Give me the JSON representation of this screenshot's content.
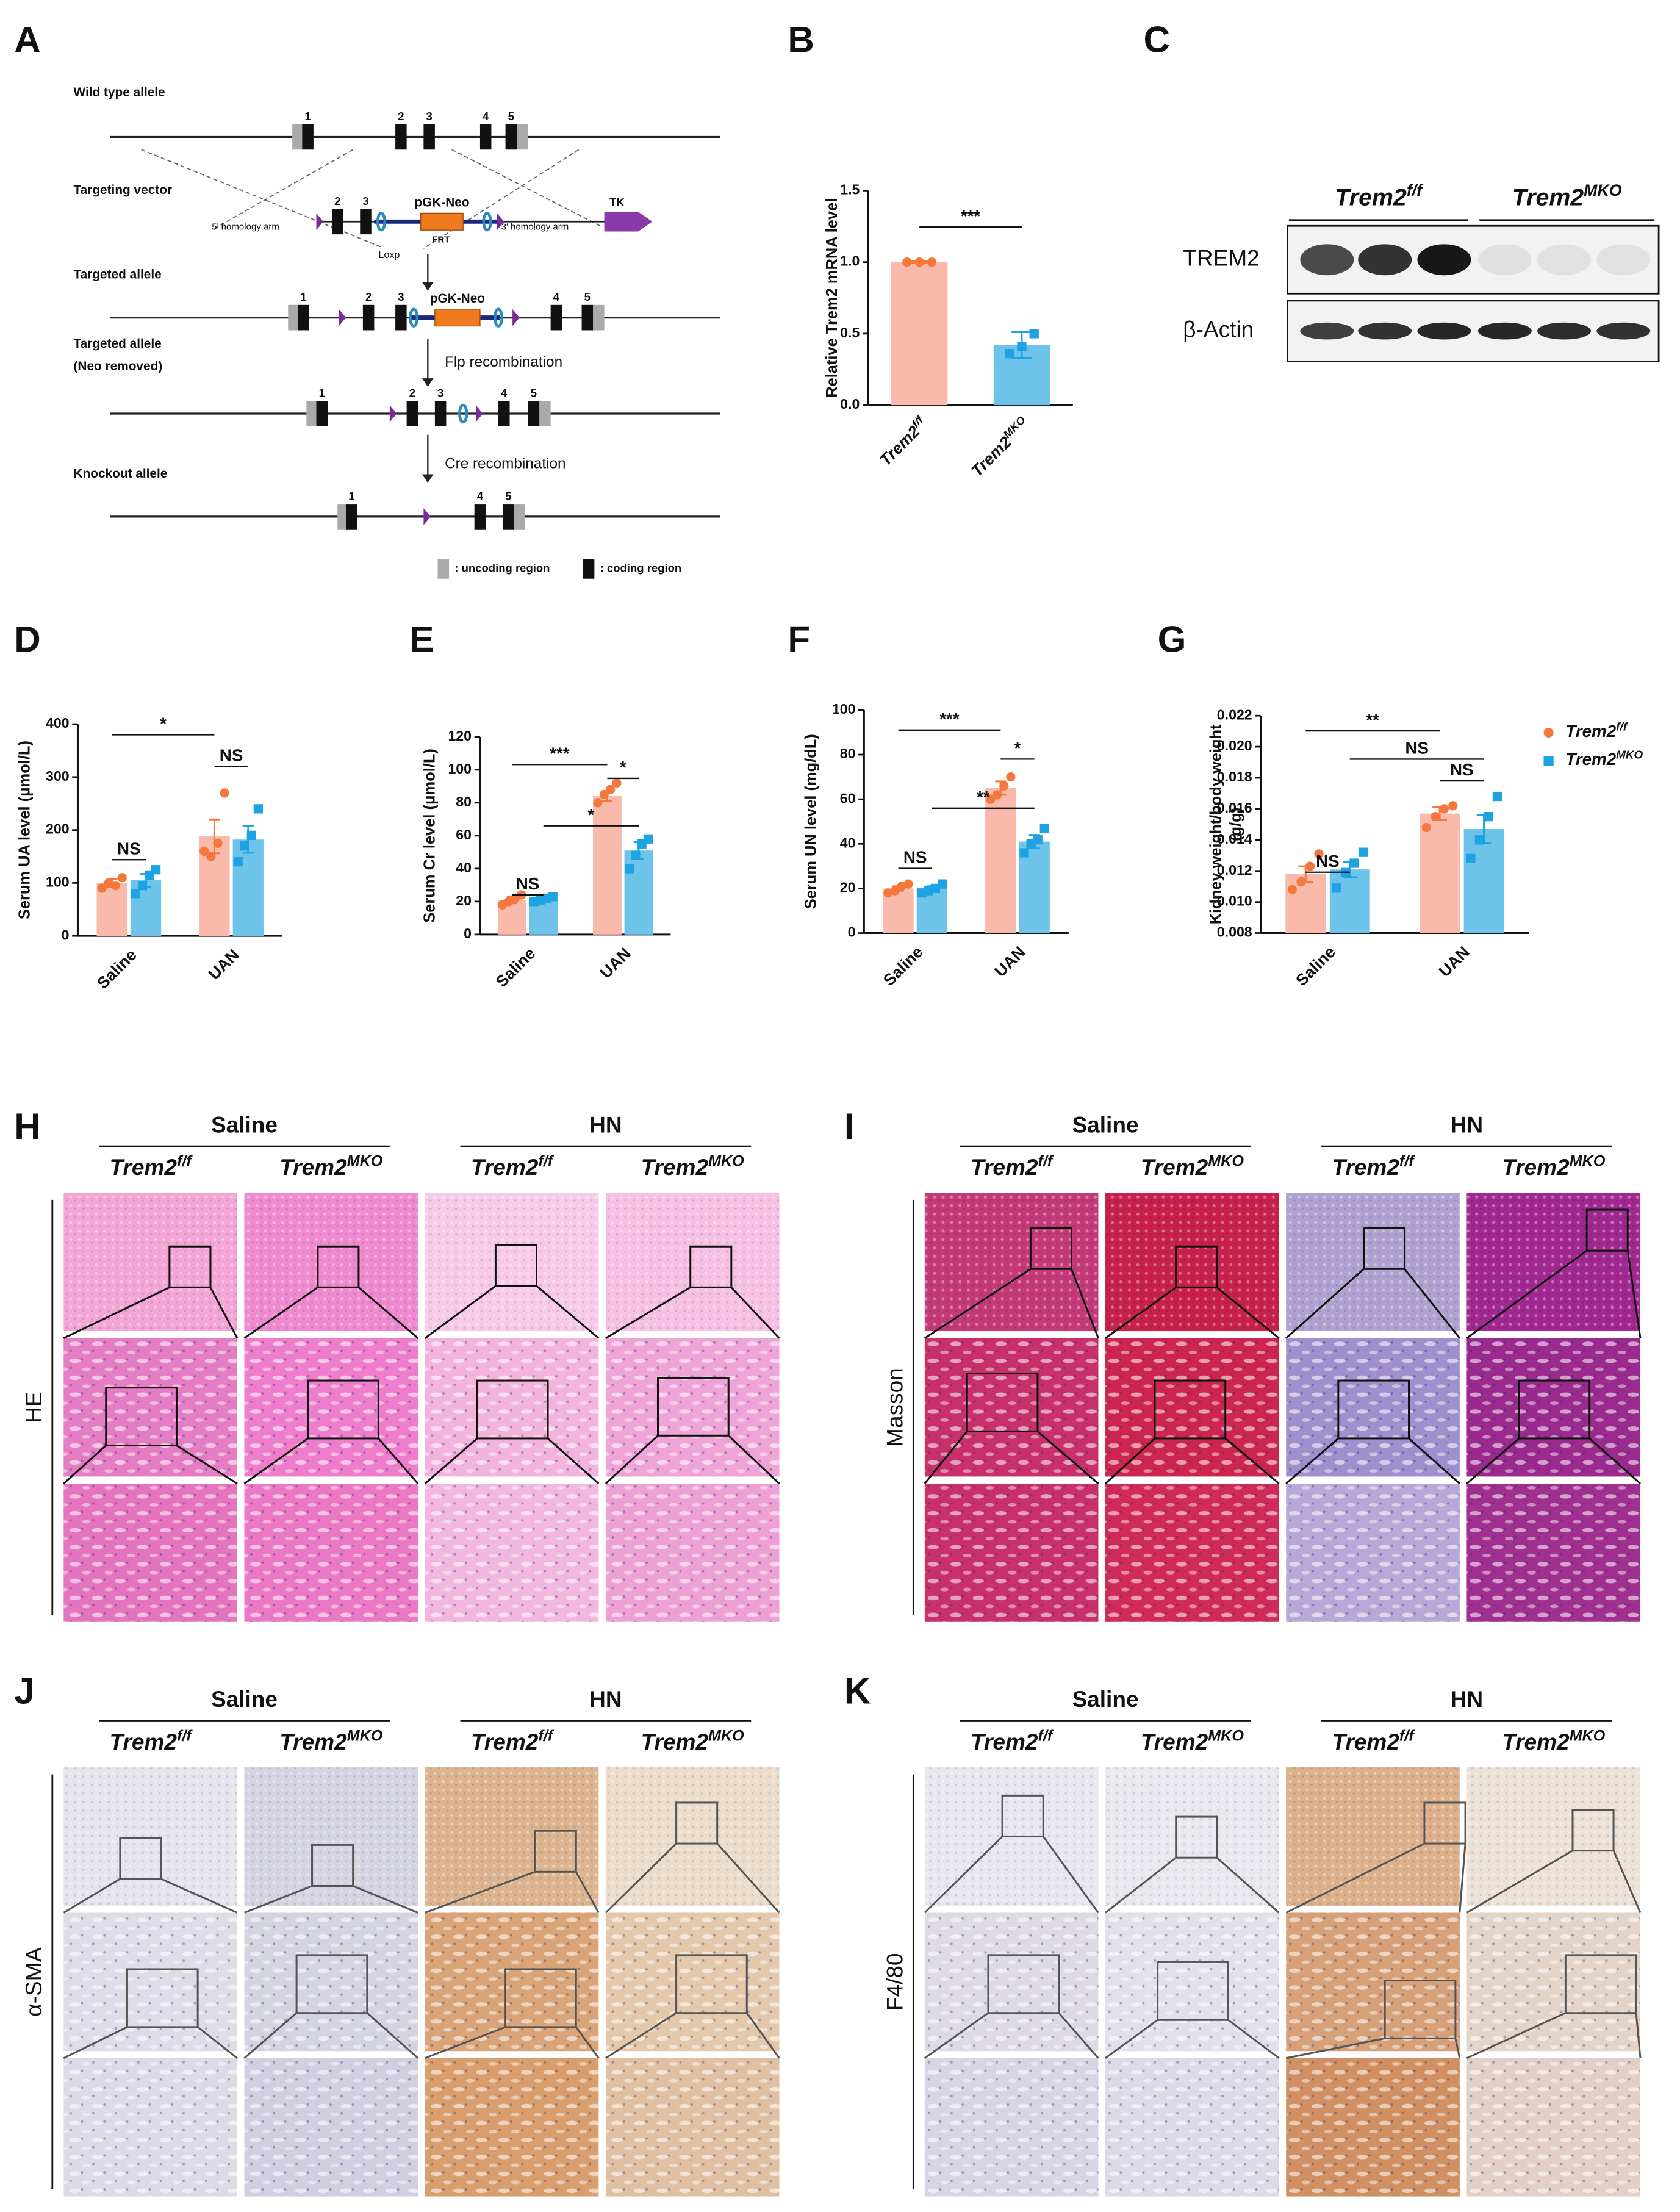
{
  "panel_letters": [
    "A",
    "B",
    "C",
    "D",
    "E",
    "F",
    "G",
    "H",
    "I",
    "J",
    "K"
  ],
  "diagram": {
    "rows": [
      "Wild type allele",
      "Targeting vector",
      "Targeted allele",
      [
        "Targeted allele",
        "(Neo removed)"
      ],
      "Knockout allele"
    ],
    "exons": {
      "wt": [
        "1",
        "2",
        "3",
        "4",
        "5"
      ],
      "vector": [
        "2",
        "3"
      ],
      "targeted": [
        "1",
        "2",
        "3",
        "4",
        "5"
      ],
      "neo_removed": [
        "1",
        "2",
        "3",
        "4",
        "5"
      ],
      "knockout": [
        "1",
        "4",
        "5"
      ]
    },
    "neo": "pGK-Neo",
    "frt": "FRT",
    "loxp": "Loxp",
    "arm5": "5' homology arm",
    "arm3": "3' homology arm",
    "tk": "TK",
    "flp": "Flp recombination",
    "cre": "Cre recombination",
    "legend": [
      ": uncoding region",
      ": coding region"
    ]
  },
  "blot": {
    "groups": [
      "Trem2f/f",
      "Trem2MKO"
    ],
    "rows": [
      "TREM2",
      "β-Actin"
    ]
  },
  "chart_data": [
    {
      "type": "bar",
      "ylabel": "Relative Trem2 mRNA level",
      "categories": [
        "Trem2f/f",
        "Trem2MKO"
      ],
      "values": [
        1.0,
        0.42
      ],
      "errors": [
        0.005,
        0.09
      ],
      "points": [
        [
          1.0,
          1.0,
          1.0
        ],
        [
          0.36,
          0.41,
          0.5
        ]
      ],
      "colors": [
        "#f9b9ab",
        "#6ec3ea"
      ],
      "point_colors": [
        "#f4783c",
        "#1da3e2"
      ],
      "markers": [
        "circle",
        "square"
      ],
      "ylim": [
        0,
        1.5
      ],
      "yticks": [
        {
          "value": 0,
          "label": "0.0"
        },
        {
          "value": 0.5,
          "label": "0.5"
        },
        {
          "value": 1.0,
          "label": "1.0"
        },
        {
          "value": 1.5,
          "label": "1.5"
        }
      ],
      "annotations": [
        "***"
      ]
    },
    {
      "type": "bar",
      "ylabel": "Serum UA level (μmol/L)",
      "categories": [
        "Saline",
        "UAN"
      ],
      "series": [
        {
          "name": "Trem2f/f",
          "color": "#f9b9ab",
          "point_color": "#f4783c",
          "marker": "circle",
          "values": [
            100,
            188
          ],
          "errors": [
            8,
            32
          ],
          "points": [
            [
              90,
              100,
              95,
              110
            ],
            [
              160,
              150,
              175,
              270
            ]
          ]
        },
        {
          "name": "Trem2MKO",
          "color": "#6ec3ea",
          "point_color": "#1da3e2",
          "marker": "square",
          "values": [
            105,
            182
          ],
          "errors": [
            12,
            25
          ],
          "points": [
            [
              80,
              95,
              115,
              125
            ],
            [
              140,
              170,
              190,
              240
            ]
          ]
        }
      ],
      "ylim": [
        0,
        400
      ],
      "yticks": [
        0,
        100,
        200,
        300,
        400
      ],
      "annotations": [
        "NS",
        "NS",
        "*"
      ]
    },
    {
      "type": "bar",
      "ylabel": "Serum Cr level (μmol/L)",
      "categories": [
        "Saline",
        "UAN"
      ],
      "series": [
        {
          "name": "Trem2f/f",
          "color": "#f9b9ab",
          "point_color": "#f4783c",
          "marker": "circle",
          "values": [
            21,
            84
          ],
          "errors": [
            2,
            3
          ],
          "points": [
            [
              18,
              20,
              22,
              24
            ],
            [
              80,
              85,
              88,
              92
            ]
          ]
        },
        {
          "name": "Trem2MKO",
          "color": "#6ec3ea",
          "point_color": "#1da3e2",
          "marker": "square",
          "values": [
            21,
            51
          ],
          "errors": [
            1,
            5
          ],
          "points": [
            [
              20,
              21,
              22,
              23
            ],
            [
              40,
              48,
              55,
              58
            ]
          ]
        }
      ],
      "ylim": [
        0,
        120
      ],
      "yticks": [
        0,
        20,
        40,
        60,
        80,
        100,
        120
      ],
      "annotations": [
        "NS",
        "***",
        "*",
        "*"
      ]
    },
    {
      "type": "bar",
      "ylabel": "Serum UN level (mg/dL)",
      "categories": [
        "Saline",
        "UAN"
      ],
      "series": [
        {
          "name": "Trem2f/f",
          "color": "#f9b9ab",
          "point_color": "#f4783c",
          "marker": "circle",
          "values": [
            20,
            65
          ],
          "errors": [
            1,
            3
          ],
          "points": [
            [
              18,
              19,
              21,
              22
            ],
            [
              60,
              62,
              66,
              70
            ]
          ]
        },
        {
          "name": "Trem2MKO",
          "color": "#6ec3ea",
          "point_color": "#1da3e2",
          "marker": "square",
          "values": [
            20,
            41
          ],
          "errors": [
            1,
            3
          ],
          "points": [
            [
              18,
              19,
              20,
              22
            ],
            [
              36,
              40,
              42,
              47
            ]
          ]
        }
      ],
      "ylim": [
        0,
        100
      ],
      "yticks": [
        0,
        20,
        40,
        60,
        80,
        100
      ],
      "annotations": [
        "NS",
        "***",
        "*",
        "**"
      ]
    },
    {
      "type": "bar",
      "ylabel": [
        "Kidney weight/body weight",
        "(g/g)"
      ],
      "categories": [
        "Saline",
        "UAN"
      ],
      "series": [
        {
          "name": "Trem2f/f",
          "color": "#f9b9ab",
          "point_color": "#f4783c",
          "marker": "circle",
          "values": [
            0.0118,
            0.0157
          ],
          "errors": [
            0.0005,
            0.0004
          ],
          "points": [
            [
              0.0108,
              0.0113,
              0.0123,
              0.0131
            ],
            [
              0.0148,
              0.0155,
              0.016,
              0.0162
            ]
          ]
        },
        {
          "name": "Trem2MKO",
          "color": "#6ec3ea",
          "point_color": "#1da3e2",
          "marker": "square",
          "values": [
            0.0121,
            0.0147
          ],
          "errors": [
            0.0005,
            0.0009
          ],
          "points": [
            [
              0.0109,
              0.0119,
              0.0125,
              0.0132
            ],
            [
              0.0128,
              0.014,
              0.0155,
              0.0168
            ]
          ]
        }
      ],
      "ylim": [
        0.008,
        0.022
      ],
      "yticks": [
        0.008,
        {
          "value": 0.01,
          "label": "0.010"
        },
        0.012,
        0.014,
        0.016,
        0.018,
        {
          "value": 0.02,
          "label": "0.020"
        },
        0.022
      ],
      "legend": "right",
      "annotations": [
        "NS",
        "**",
        "NS",
        "NS"
      ]
    }
  ],
  "histology": [
    {
      "conditions": [
        "Saline",
        "HN"
      ],
      "genotypes": [
        "Trem2f/f",
        "Trem2MKO",
        "Trem2f/f",
        "Trem2MKO"
      ],
      "stain": "HE"
    },
    {
      "conditions": [
        "Saline",
        "HN"
      ],
      "genotypes": [
        "Trem2f/f",
        "Trem2MKO",
        "Trem2f/f",
        "Trem2MKO"
      ],
      "stain": "Masson"
    },
    {
      "conditions": [
        "Saline",
        "HN"
      ],
      "genotypes": [
        "Trem2f/f",
        "Trem2MKO",
        "Trem2f/f",
        "Trem2MKO"
      ],
      "stain": "α-SMA"
    },
    {
      "conditions": [
        "Saline",
        "HN"
      ],
      "genotypes": [
        "Trem2f/f",
        "Trem2MKO",
        "Trem2f/f",
        "Trem2MKO"
      ],
      "stain": "F4/80"
    }
  ]
}
